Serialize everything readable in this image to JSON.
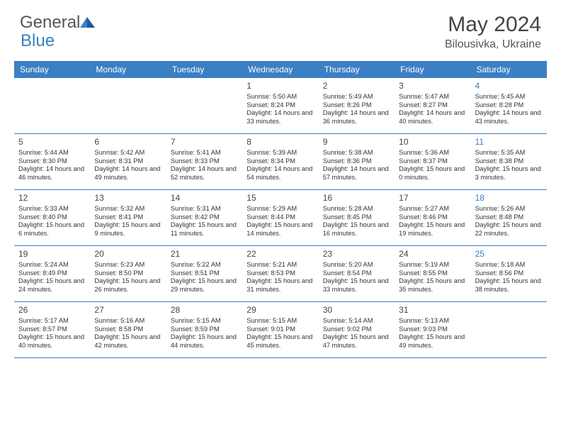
{
  "logo": {
    "text1": "General",
    "text2": "Blue"
  },
  "title": "May 2024",
  "location": "Bilousivka, Ukraine",
  "colors": {
    "header_bg": "#3b7fc4",
    "header_text": "#ffffff",
    "row_border": "#3b7fc4",
    "body_text": "#333333",
    "title_text": "#444444",
    "logo_gray": "#555555",
    "logo_blue": "#3b7fc4",
    "background": "#ffffff"
  },
  "typography": {
    "title_fontsize": 30,
    "location_fontsize": 16,
    "day_header_fontsize": 12,
    "day_num_fontsize": 12,
    "cell_fontsize": 9.3,
    "logo_fontsize": 24
  },
  "day_names": [
    "Sunday",
    "Monday",
    "Tuesday",
    "Wednesday",
    "Thursday",
    "Friday",
    "Saturday"
  ],
  "weeks": [
    [
      null,
      null,
      null,
      {
        "n": "1",
        "sr": "5:50 AM",
        "ss": "8:24 PM",
        "dl": "14 hours and 33 minutes."
      },
      {
        "n": "2",
        "sr": "5:49 AM",
        "ss": "8:26 PM",
        "dl": "14 hours and 36 minutes."
      },
      {
        "n": "3",
        "sr": "5:47 AM",
        "ss": "8:27 PM",
        "dl": "14 hours and 40 minutes."
      },
      {
        "n": "4",
        "sr": "5:45 AM",
        "ss": "8:28 PM",
        "dl": "14 hours and 43 minutes."
      }
    ],
    [
      {
        "n": "5",
        "sr": "5:44 AM",
        "ss": "8:30 PM",
        "dl": "14 hours and 46 minutes."
      },
      {
        "n": "6",
        "sr": "5:42 AM",
        "ss": "8:31 PM",
        "dl": "14 hours and 49 minutes."
      },
      {
        "n": "7",
        "sr": "5:41 AM",
        "ss": "8:33 PM",
        "dl": "14 hours and 52 minutes."
      },
      {
        "n": "8",
        "sr": "5:39 AM",
        "ss": "8:34 PM",
        "dl": "14 hours and 54 minutes."
      },
      {
        "n": "9",
        "sr": "5:38 AM",
        "ss": "8:36 PM",
        "dl": "14 hours and 57 minutes."
      },
      {
        "n": "10",
        "sr": "5:36 AM",
        "ss": "8:37 PM",
        "dl": "15 hours and 0 minutes."
      },
      {
        "n": "11",
        "sr": "5:35 AM",
        "ss": "8:38 PM",
        "dl": "15 hours and 3 minutes."
      }
    ],
    [
      {
        "n": "12",
        "sr": "5:33 AM",
        "ss": "8:40 PM",
        "dl": "15 hours and 6 minutes."
      },
      {
        "n": "13",
        "sr": "5:32 AM",
        "ss": "8:41 PM",
        "dl": "15 hours and 9 minutes."
      },
      {
        "n": "14",
        "sr": "5:31 AM",
        "ss": "8:42 PM",
        "dl": "15 hours and 11 minutes."
      },
      {
        "n": "15",
        "sr": "5:29 AM",
        "ss": "8:44 PM",
        "dl": "15 hours and 14 minutes."
      },
      {
        "n": "16",
        "sr": "5:28 AM",
        "ss": "8:45 PM",
        "dl": "15 hours and 16 minutes."
      },
      {
        "n": "17",
        "sr": "5:27 AM",
        "ss": "8:46 PM",
        "dl": "15 hours and 19 minutes."
      },
      {
        "n": "18",
        "sr": "5:26 AM",
        "ss": "8:48 PM",
        "dl": "15 hours and 22 minutes."
      }
    ],
    [
      {
        "n": "19",
        "sr": "5:24 AM",
        "ss": "8:49 PM",
        "dl": "15 hours and 24 minutes."
      },
      {
        "n": "20",
        "sr": "5:23 AM",
        "ss": "8:50 PM",
        "dl": "15 hours and 26 minutes."
      },
      {
        "n": "21",
        "sr": "5:22 AM",
        "ss": "8:51 PM",
        "dl": "15 hours and 29 minutes."
      },
      {
        "n": "22",
        "sr": "5:21 AM",
        "ss": "8:53 PM",
        "dl": "15 hours and 31 minutes."
      },
      {
        "n": "23",
        "sr": "5:20 AM",
        "ss": "8:54 PM",
        "dl": "15 hours and 33 minutes."
      },
      {
        "n": "24",
        "sr": "5:19 AM",
        "ss": "8:55 PM",
        "dl": "15 hours and 35 minutes."
      },
      {
        "n": "25",
        "sr": "5:18 AM",
        "ss": "8:56 PM",
        "dl": "15 hours and 38 minutes."
      }
    ],
    [
      {
        "n": "26",
        "sr": "5:17 AM",
        "ss": "8:57 PM",
        "dl": "15 hours and 40 minutes."
      },
      {
        "n": "27",
        "sr": "5:16 AM",
        "ss": "8:58 PM",
        "dl": "15 hours and 42 minutes."
      },
      {
        "n": "28",
        "sr": "5:15 AM",
        "ss": "8:59 PM",
        "dl": "15 hours and 44 minutes."
      },
      {
        "n": "29",
        "sr": "5:15 AM",
        "ss": "9:01 PM",
        "dl": "15 hours and 45 minutes."
      },
      {
        "n": "30",
        "sr": "5:14 AM",
        "ss": "9:02 PM",
        "dl": "15 hours and 47 minutes."
      },
      {
        "n": "31",
        "sr": "5:13 AM",
        "ss": "9:03 PM",
        "dl": "15 hours and 49 minutes."
      },
      null
    ]
  ],
  "labels": {
    "sunrise": "Sunrise: ",
    "sunset": "Sunset: ",
    "daylight": "Daylight: "
  }
}
